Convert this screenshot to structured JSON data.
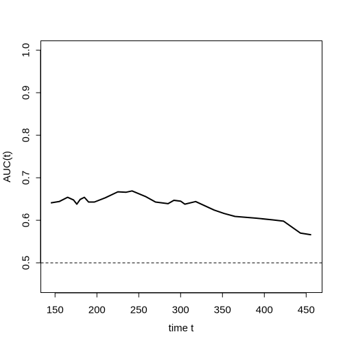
{
  "chart_data": {
    "type": "line",
    "xlabel": "time t",
    "ylabel": "AUC(t)",
    "xlim": [
      133,
      469
    ],
    "ylim": [
      0.43,
      1.022
    ],
    "xticks": [
      150,
      200,
      250,
      300,
      350,
      400,
      450
    ],
    "yticks": [
      0.5,
      0.6,
      0.7,
      0.8,
      0.9,
      1.0
    ],
    "ytick_labels": [
      "0.5",
      "0.6",
      "0.7",
      "0.8",
      "0.9",
      "1.0"
    ],
    "series": [
      {
        "x": [
          145,
          155,
          165,
          172,
          176,
          180,
          185,
          190,
          197,
          210,
          225,
          235,
          242,
          258,
          270,
          285,
          292,
          300,
          305,
          318,
          340,
          352,
          365,
          390,
          410,
          423,
          443,
          456
        ],
        "y": [
          0.641,
          0.644,
          0.654,
          0.648,
          0.638,
          0.649,
          0.654,
          0.643,
          0.643,
          0.653,
          0.667,
          0.666,
          0.669,
          0.656,
          0.643,
          0.639,
          0.647,
          0.645,
          0.638,
          0.644,
          0.624,
          0.616,
          0.609,
          0.605,
          0.601,
          0.598,
          0.57,
          0.566
        ],
        "color": "#000000"
      }
    ],
    "reference_line": {
      "y": 0.5,
      "style": "dashed"
    },
    "grid": false,
    "legend": "none"
  }
}
